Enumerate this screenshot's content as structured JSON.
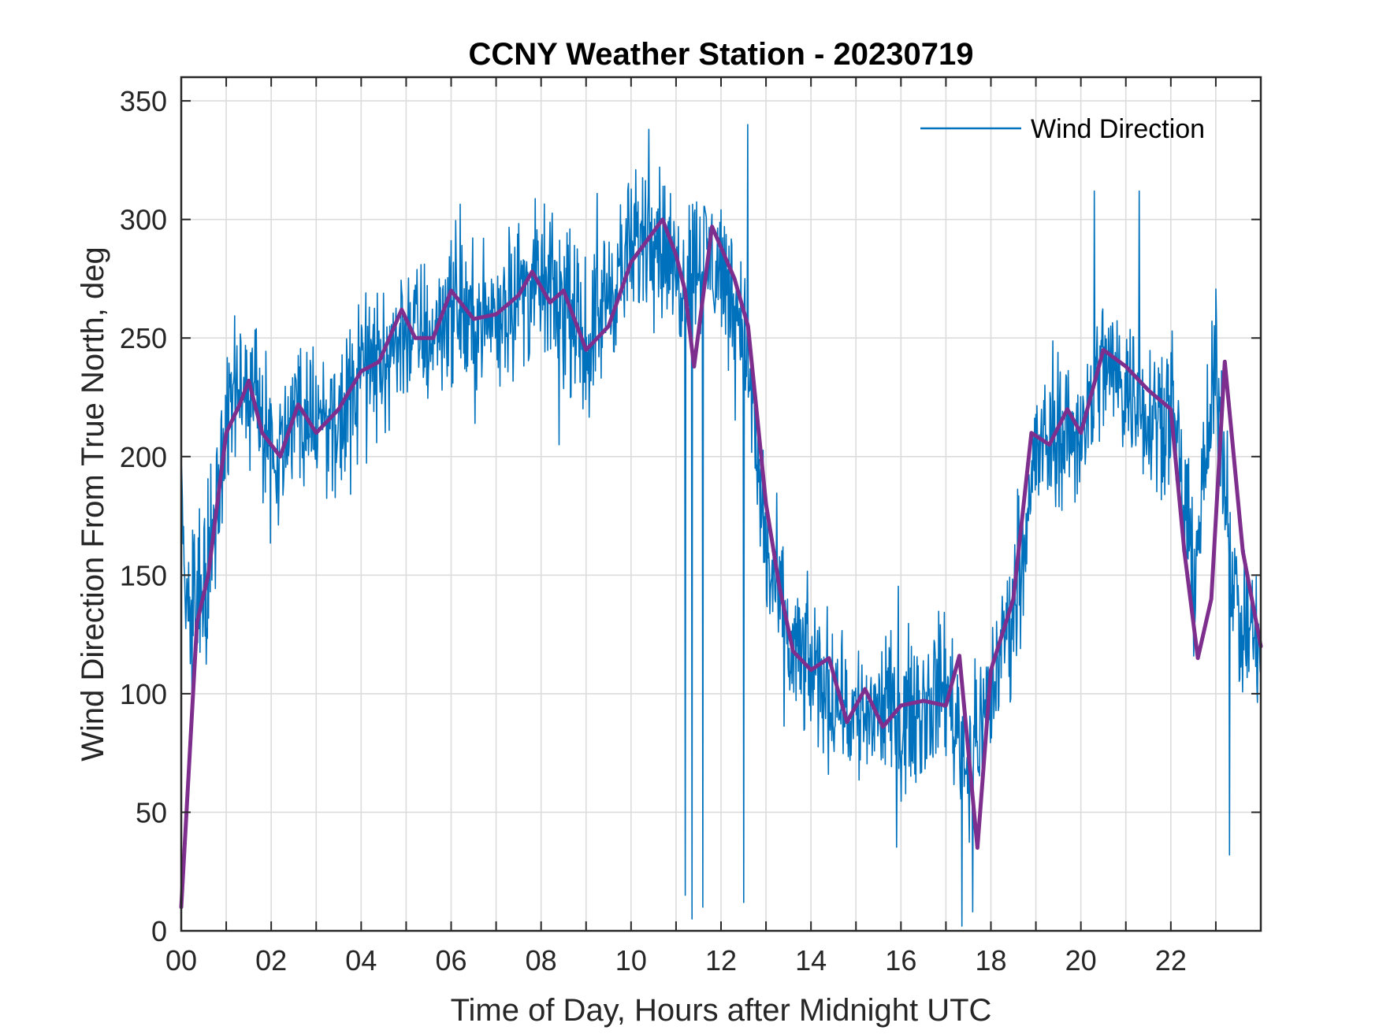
{
  "chart_data": {
    "type": "line",
    "title": "CCNY Weather Station - 20230719",
    "xlabel": "Time of Day, Hours after Midnight UTC",
    "ylabel": "Wind Direction From True North, deg",
    "xlim": [
      0,
      24
    ],
    "ylim": [
      0,
      360
    ],
    "grid": true,
    "legend_position": "top-right",
    "x_ticks": [
      0,
      2,
      4,
      6,
      8,
      10,
      12,
      14,
      16,
      18,
      20,
      22
    ],
    "x_tick_labels": [
      "00",
      "02",
      "04",
      "06",
      "08",
      "10",
      "12",
      "14",
      "16",
      "18",
      "20",
      "22"
    ],
    "y_ticks": [
      0,
      50,
      100,
      150,
      200,
      250,
      300,
      350
    ],
    "y_tick_labels": [
      "0",
      "50",
      "100",
      "150",
      "200",
      "250",
      "300",
      "350"
    ],
    "colors": {
      "raw": "#0072BD",
      "smoothed": "#7E2F8E",
      "axes": "#262626",
      "grid": "#dcdcdc"
    },
    "series": [
      {
        "name": "Wind Direction",
        "role": "raw",
        "in_legend": true,
        "noise_amplitude": 22,
        "x": [
          0,
          0.1,
          0.3,
          0.6,
          1.0,
          1.5,
          2.0,
          2.5,
          3.0,
          3.5,
          4.0,
          4.5,
          5.0,
          5.5,
          6.0,
          6.5,
          7.0,
          7.5,
          8.0,
          8.5,
          9.0,
          9.5,
          10.0,
          10.5,
          11.0,
          11.5,
          12.0,
          12.5,
          13.0,
          13.5,
          14.0,
          14.5,
          15.0,
          15.5,
          16.0,
          16.5,
          17.0,
          17.5,
          18.0,
          18.5,
          19.0,
          19.5,
          20.0,
          20.5,
          21.0,
          21.5,
          22.0,
          22.5,
          23.0,
          23.5,
          24.0
        ],
        "y": [
          190,
          130,
          138,
          150,
          215,
          230,
          200,
          220,
          215,
          215,
          235,
          240,
          255,
          250,
          265,
          255,
          260,
          270,
          272,
          265,
          245,
          270,
          285,
          300,
          275,
          285,
          280,
          255,
          160,
          120,
          110,
          100,
          90,
          95,
          90,
          95,
          105,
          70,
          100,
          140,
          200,
          210,
          210,
          240,
          230,
          220,
          220,
          150,
          235,
          130,
          120
        ],
        "spikes": [
          [
            11.2,
            15
          ],
          [
            11.35,
            5
          ],
          [
            11.6,
            10
          ],
          [
            12.5,
            12
          ],
          [
            17.35,
            2
          ],
          [
            17.6,
            8
          ],
          [
            23.3,
            32
          ],
          [
            8.4,
            205
          ],
          [
            12.6,
            340
          ],
          [
            10.4,
            338
          ],
          [
            20.3,
            312
          ],
          [
            21.3,
            312
          ]
        ]
      },
      {
        "name": "Smoothed",
        "role": "smoothed",
        "in_legend": false,
        "x": [
          0,
          0.35,
          0.6,
          1.0,
          1.3,
          1.5,
          1.8,
          2.2,
          2.6,
          3.0,
          3.5,
          4.0,
          4.4,
          4.9,
          5.2,
          5.6,
          6.0,
          6.5,
          7.0,
          7.5,
          7.8,
          8.2,
          8.5,
          9.0,
          9.5,
          10.0,
          10.7,
          11.0,
          11.2,
          11.4,
          11.8,
          12.3,
          12.6,
          13.0,
          13.3,
          13.6,
          14.0,
          14.4,
          14.8,
          15.2,
          15.6,
          16.0,
          16.5,
          17.0,
          17.3,
          17.7,
          18.0,
          18.5,
          18.9,
          19.3,
          19.7,
          20.0,
          20.5,
          21.0,
          21.5,
          22.0,
          22.3,
          22.6,
          22.9,
          23.2,
          23.6,
          24.0
        ],
        "y": [
          10,
          130,
          150,
          210,
          222,
          232,
          210,
          200,
          222,
          210,
          220,
          236,
          240,
          262,
          250,
          250,
          270,
          258,
          260,
          268,
          278,
          265,
          270,
          245,
          255,
          282,
          300,
          285,
          270,
          238,
          297,
          275,
          255,
          180,
          145,
          118,
          110,
          115,
          88,
          102,
          86,
          95,
          97,
          95,
          116,
          35,
          110,
          140,
          210,
          205,
          220,
          210,
          245,
          238,
          228,
          220,
          160,
          115,
          140,
          240,
          160,
          120
        ]
      }
    ]
  }
}
